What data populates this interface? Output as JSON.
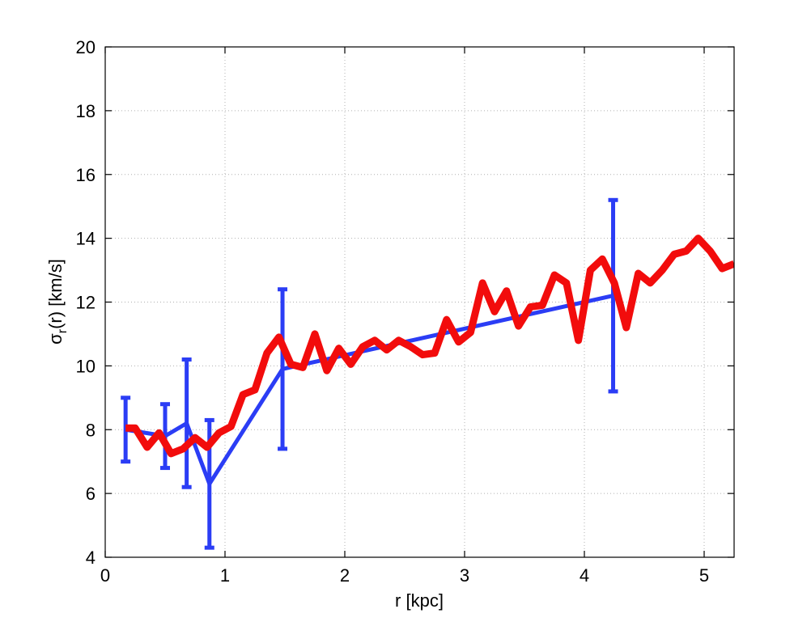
{
  "chart_data": {
    "type": "line",
    "xlabel": "r [kpc]",
    "ylabel": {
      "main": "σ",
      "sub": "r",
      "rest": "(r) [km/s]"
    },
    "xlim": [
      0,
      5.25
    ],
    "ylim": [
      4,
      20
    ],
    "xticks": [
      0,
      1,
      2,
      3,
      4,
      5
    ],
    "yticks": [
      4,
      6,
      8,
      10,
      12,
      14,
      16,
      18,
      20
    ],
    "xtick_labels": [
      "0",
      "1",
      "2",
      "3",
      "4",
      "5"
    ],
    "ytick_labels": [
      "4",
      "6",
      "8",
      "10",
      "12",
      "14",
      "16",
      "18",
      "20"
    ],
    "grid": true,
    "series": [
      {
        "color": "#2b3df5",
        "kind": "errorbar",
        "x": [
          0.17,
          0.5,
          0.68,
          0.87,
          1.48,
          4.24
        ],
        "y": [
          8.0,
          7.8,
          8.2,
          6.3,
          9.9,
          12.2
        ],
        "err": [
          1.0,
          1.0,
          2.0,
          2.0,
          2.5,
          3.0
        ]
      },
      {
        "color": "#f20c0c",
        "kind": "line",
        "x": [
          0.17,
          0.25,
          0.35,
          0.45,
          0.55,
          0.65,
          0.75,
          0.85,
          0.95,
          1.05,
          1.15,
          1.25,
          1.35,
          1.45,
          1.55,
          1.65,
          1.75,
          1.85,
          1.95,
          2.05,
          2.15,
          2.25,
          2.35,
          2.45,
          2.55,
          2.65,
          2.75,
          2.85,
          2.95,
          3.05,
          3.15,
          3.25,
          3.35,
          3.45,
          3.55,
          3.65,
          3.75,
          3.85,
          3.95,
          4.05,
          4.15,
          4.25,
          4.35,
          4.45,
          4.55,
          4.65,
          4.75,
          4.85,
          4.95,
          5.05,
          5.15,
          5.25
        ],
        "y": [
          8.05,
          8.05,
          7.45,
          7.9,
          7.25,
          7.4,
          7.75,
          7.45,
          7.9,
          8.1,
          9.1,
          9.25,
          10.4,
          10.9,
          10.05,
          9.95,
          11.0,
          9.85,
          10.55,
          10.05,
          10.6,
          10.8,
          10.5,
          10.8,
          10.6,
          10.35,
          10.4,
          11.45,
          10.75,
          11.05,
          12.6,
          11.7,
          12.35,
          11.25,
          11.85,
          11.9,
          12.85,
          12.6,
          10.8,
          13.0,
          13.35,
          12.6,
          11.2,
          12.9,
          12.6,
          13.0,
          13.5,
          13.6,
          14.0,
          13.6,
          13.05,
          13.2
        ]
      }
    ]
  }
}
